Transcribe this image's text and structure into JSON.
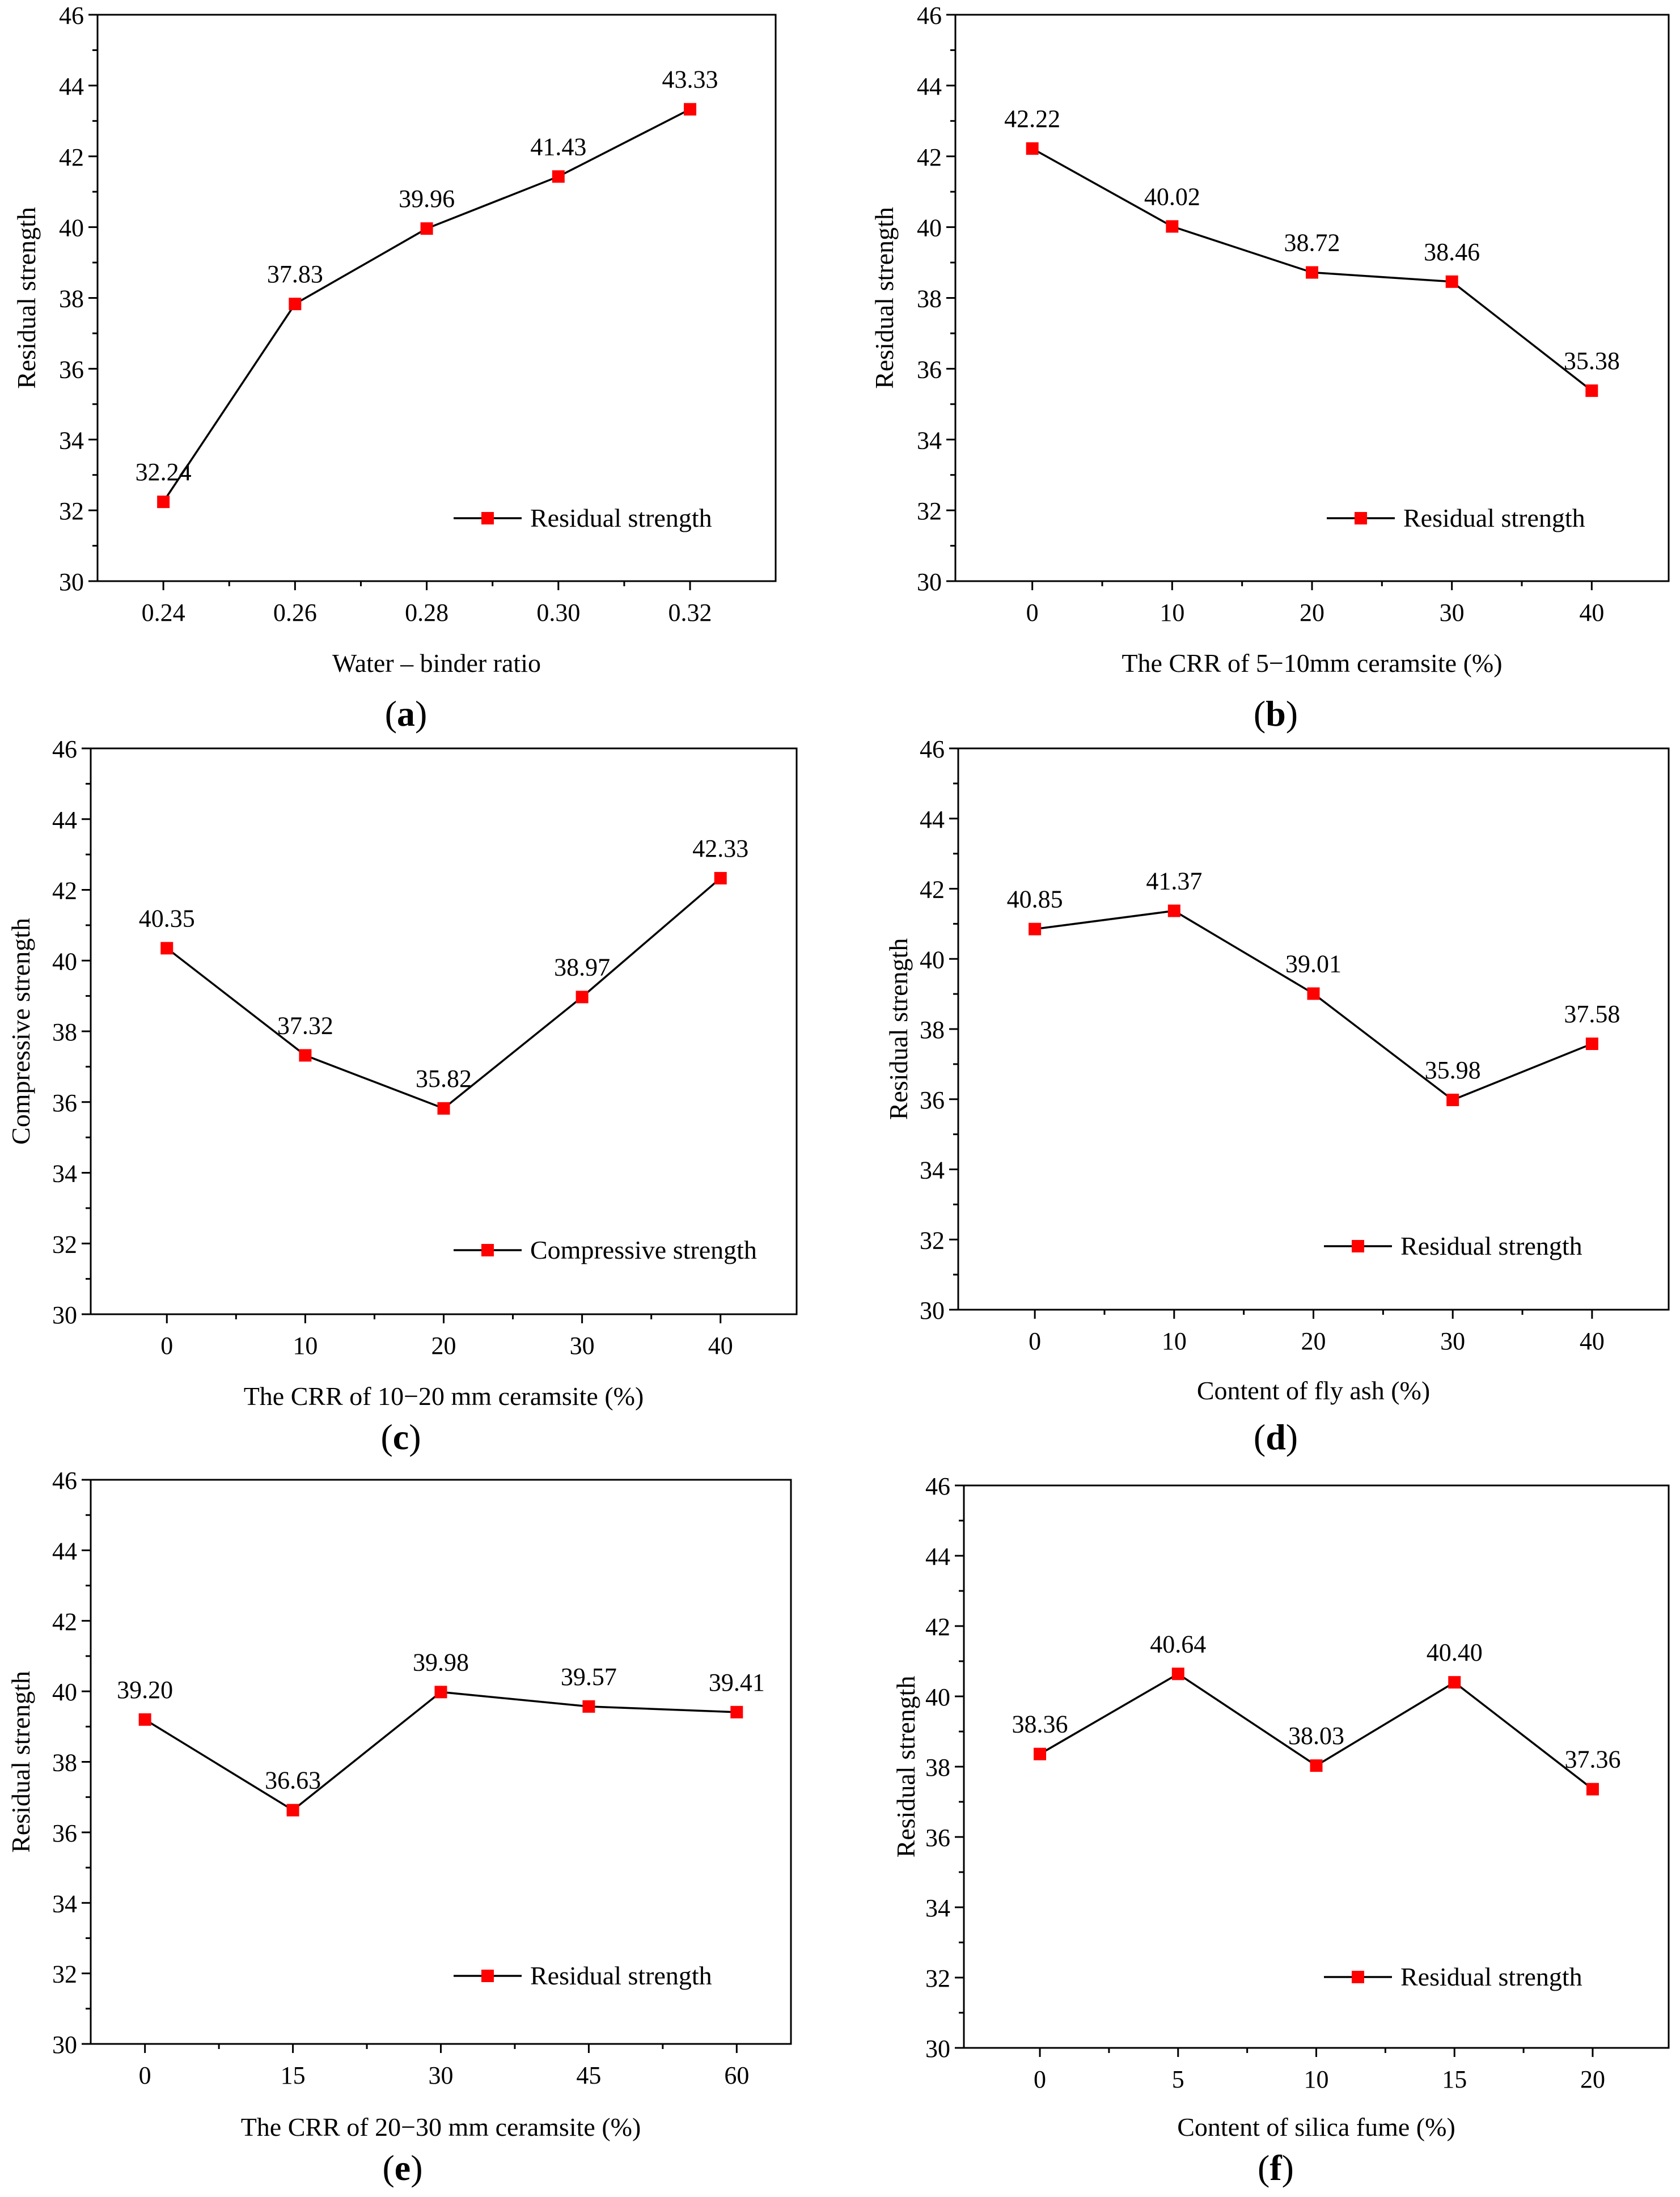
{
  "chart_data": [
    {
      "type": "line",
      "panel": "a",
      "xlabel": "Water – binder ratio",
      "ylabel": "Residual strength",
      "categories": [
        "0.24",
        "0.26",
        "0.28",
        "0.30",
        "0.32"
      ],
      "xlim": [
        0.23,
        0.333
      ],
      "ylim": [
        30,
        46
      ],
      "yticks": [
        30,
        32,
        34,
        36,
        38,
        40,
        42,
        44,
        46
      ],
      "series": [
        {
          "name": "Residual strength",
          "x": [
            0.24,
            0.26,
            0.28,
            0.3,
            0.32
          ],
          "values": [
            32.24,
            37.83,
            39.96,
            41.43,
            43.33
          ]
        }
      ],
      "data_labels": [
        "32.24",
        "37.83",
        "39.96",
        "41.43",
        "43.33"
      ],
      "legend": "Residual strength",
      "legend_position": "bottom-right",
      "line_color": "#000000",
      "marker_color": "#ff0000"
    },
    {
      "type": "line",
      "panel": "b",
      "xlabel": "The CRR of 5−10mm ceramsite (%)",
      "ylabel": "Residual strength",
      "categories": [
        "0",
        "10",
        "20",
        "30",
        "40"
      ],
      "xlim": [
        -5.5,
        45.5
      ],
      "ylim": [
        30,
        46
      ],
      "yticks": [
        30,
        32,
        34,
        36,
        38,
        40,
        42,
        44,
        46
      ],
      "series": [
        {
          "name": "Residual strength",
          "x": [
            0,
            10,
            20,
            30,
            40
          ],
          "values": [
            42.22,
            40.02,
            38.72,
            38.46,
            35.38
          ]
        }
      ],
      "data_labels": [
        "42.22",
        "40.02",
        "38.72",
        "38.46",
        "35.38"
      ],
      "legend": "Residual strength",
      "legend_position": "bottom-right",
      "line_color": "#000000",
      "marker_color": "#ff0000"
    },
    {
      "type": "line",
      "panel": "c",
      "xlabel": "The CRR of 10−20 mm ceramsite (%)",
      "ylabel": "Compressive strength",
      "categories": [
        "0",
        "10",
        "20",
        "30",
        "40"
      ],
      "xlim": [
        -5.5,
        45.5
      ],
      "ylim": [
        30,
        46
      ],
      "yticks": [
        30,
        32,
        34,
        36,
        38,
        40,
        42,
        44,
        46
      ],
      "series": [
        {
          "name": "Compressive strength",
          "x": [
            0,
            10,
            20,
            30,
            40
          ],
          "values": [
            40.35,
            37.32,
            35.82,
            38.97,
            42.33
          ]
        }
      ],
      "data_labels": [
        "40.35",
        "37.32",
        "35.82",
        "38.97",
        "42.33"
      ],
      "legend": "Compressive strength",
      "legend_position": "bottom-right",
      "line_color": "#000000",
      "marker_color": "#ff0000"
    },
    {
      "type": "line",
      "panel": "d",
      "xlabel": "Content of fly ash (%)",
      "ylabel": "Residual strength",
      "categories": [
        "0",
        "10",
        "20",
        "30",
        "40"
      ],
      "xlim": [
        -5.5,
        45.5
      ],
      "ylim": [
        30,
        46
      ],
      "yticks": [
        30,
        32,
        34,
        36,
        38,
        40,
        42,
        44,
        46
      ],
      "series": [
        {
          "name": "Residual strength",
          "x": [
            0,
            10,
            20,
            30,
            40
          ],
          "values": [
            40.85,
            41.37,
            39.01,
            35.98,
            37.58
          ]
        }
      ],
      "data_labels": [
        "40.85",
        "41.37",
        "39.01",
        "35.98",
        "37.58"
      ],
      "legend": "Residual strength",
      "legend_position": "bottom-right",
      "line_color": "#000000",
      "marker_color": "#ff0000"
    },
    {
      "type": "line",
      "panel": "e",
      "xlabel": "The CRR of 20−30 mm ceramsite (%)",
      "ylabel": "Residual strength",
      "categories": [
        "0",
        "15",
        "30",
        "45",
        "60"
      ],
      "xlim": [
        -5.5,
        65.5
      ],
      "ylim": [
        30,
        46
      ],
      "yticks": [
        30,
        32,
        34,
        36,
        38,
        40,
        42,
        44,
        46
      ],
      "series": [
        {
          "name": "Residual strength",
          "x": [
            0,
            15,
            30,
            45,
            60
          ],
          "values": [
            39.2,
            36.63,
            39.98,
            39.57,
            39.41
          ]
        }
      ],
      "data_labels": [
        "39.20",
        "36.63",
        "39.98",
        "39.57",
        "39.41"
      ],
      "legend": "Residual strength",
      "legend_position": "bottom-right",
      "line_color": "#000000",
      "marker_color": "#ff0000"
    },
    {
      "type": "line",
      "panel": "f",
      "xlabel": "Content of  silica fume (%)",
      "ylabel": "Residual strength",
      "categories": [
        "0",
        "5",
        "10",
        "15",
        "20"
      ],
      "xlim": [
        -2.75,
        22.75
      ],
      "ylim": [
        30,
        46
      ],
      "yticks": [
        30,
        32,
        34,
        36,
        38,
        40,
        42,
        44,
        46
      ],
      "series": [
        {
          "name": "Residual strength",
          "x": [
            0,
            5,
            10,
            15,
            20
          ],
          "values": [
            38.36,
            40.64,
            38.03,
            40.4,
            37.36
          ]
        }
      ],
      "data_labels": [
        "38.36",
        "40.64",
        "38.03",
        "40.40",
        "37.36"
      ],
      "legend": "Residual strength",
      "legend_position": "bottom-right",
      "line_color": "#000000",
      "marker_color": "#ff0000"
    }
  ],
  "panel_labels": [
    "a",
    "b",
    "c",
    "d",
    "e",
    "f"
  ]
}
